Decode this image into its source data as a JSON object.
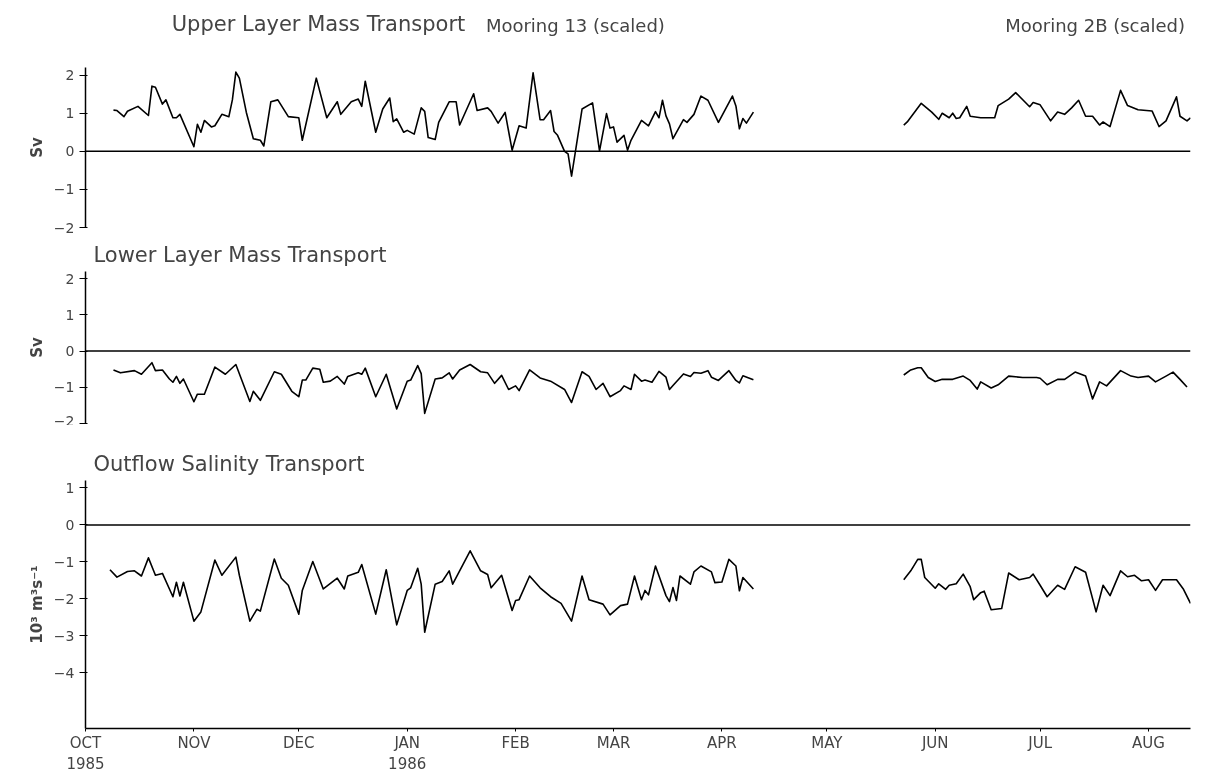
{
  "chart_data": [
    {
      "type": "line",
      "title": "Upper Layer Mass Transport",
      "annotations": [
        "Mooring 13 (scaled)",
        "Mooring 2B (scaled)"
      ],
      "ylabel": "Sv",
      "xlim": [
        "1985-10-01",
        "1986-08-13"
      ],
      "ylim": [
        -2,
        2.2
      ],
      "yticks": [
        -2,
        -1,
        0,
        1,
        2
      ],
      "grid": false,
      "tick_labels": "y",
      "ref_lines": [
        {
          "axis": "y",
          "value": 0,
          "color": "#000000"
        }
      ],
      "series": [
        {
          "color": "#000000",
          "x": [
            "1985-10-09",
            "1985-10-10",
            "1985-10-12",
            "1985-10-13",
            "1985-10-16",
            "1985-10-19",
            "1985-10-20",
            "1985-10-21",
            "1985-10-23",
            "1985-10-24",
            "1985-10-26",
            "1985-10-27",
            "1985-10-28",
            "1985-11-01",
            "1985-11-02",
            "1985-11-03",
            "1985-11-04",
            "1985-11-06",
            "1985-11-07",
            "1985-11-09",
            "1985-11-11",
            "1985-11-12",
            "1985-11-13",
            "1985-11-14",
            "1985-11-16",
            "1985-11-18",
            "1985-11-20",
            "1985-11-21",
            "1985-11-23",
            "1985-11-25",
            "1985-11-28",
            "1985-12-01",
            "1985-12-02",
            "1985-12-06",
            "1985-12-09",
            "1985-12-12",
            "1985-12-13",
            "1985-12-16",
            "1985-12-18",
            "1985-12-19",
            "1985-12-20",
            "1985-12-23",
            "1985-12-25",
            "1985-12-27",
            "1985-12-28",
            "1985-12-29",
            "1985-12-31",
            "1986-01-01",
            "1986-01-03",
            "1986-01-05",
            "1986-01-06",
            "1986-01-07",
            "1986-01-09",
            "1986-01-10",
            "1986-01-13",
            "1986-01-15",
            "1986-01-16",
            "1986-01-20",
            "1986-01-21",
            "1986-01-24",
            "1986-01-25",
            "1986-01-27",
            "1986-01-29",
            "1986-01-31",
            "1986-02-02",
            "1986-02-04",
            "1986-02-06",
            "1986-02-08",
            "1986-02-09",
            "1986-02-11",
            "1986-02-12",
            "1986-02-13",
            "1986-02-15",
            "1986-02-16",
            "1986-02-17",
            "1986-02-18",
            "1986-02-20",
            "1986-02-23",
            "1986-02-25",
            "1986-02-27",
            "1986-02-28",
            "1986-03-01",
            "1986-03-02",
            "1986-03-04",
            "1986-03-05",
            "1986-03-06",
            "1986-03-09",
            "1986-03-11",
            "1986-03-13",
            "1986-03-14",
            "1986-03-15",
            "1986-03-16",
            "1986-03-17",
            "1986-03-18",
            "1986-03-21",
            "1986-03-22",
            "1986-03-24",
            "1986-03-26",
            "1986-03-28",
            "1986-03-31",
            "1986-04-04",
            "1986-04-05",
            "1986-04-06",
            "1986-04-07",
            "1986-04-08",
            "1986-04-10"
          ],
          "values": [
            1.08,
            1.07,
            0.91,
            1.05,
            1.18,
            0.94,
            1.71,
            1.68,
            1.24,
            1.35,
            0.88,
            0.88,
            0.97,
            0.12,
            0.71,
            0.5,
            0.81,
            0.64,
            0.67,
            0.97,
            0.91,
            1.35,
            2.08,
            1.92,
            1.02,
            0.33,
            0.29,
            0.14,
            1.3,
            1.35,
            0.91,
            0.88,
            0.29,
            1.92,
            0.88,
            1.3,
            0.97,
            1.3,
            1.37,
            1.18,
            1.84,
            0.5,
            1.11,
            1.4,
            0.78,
            0.85,
            0.5,
            0.55,
            0.45,
            1.14,
            1.05,
            0.36,
            0.31,
            0.76,
            1.3,
            1.3,
            0.69,
            1.51,
            1.07,
            1.14,
            1.05,
            0.74,
            1.02,
            0.03,
            0.67,
            0.61,
            2.06,
            0.83,
            0.83,
            1.07,
            0.52,
            0.42,
            0.0,
            -0.07,
            -0.65,
            -0.07,
            1.11,
            1.27,
            0.01,
            0.99,
            0.61,
            0.64,
            0.24,
            0.42,
            0.03,
            0.29,
            0.81,
            0.67,
            1.04,
            0.88,
            1.34,
            0.93,
            0.72,
            0.33,
            0.83,
            0.76,
            0.97,
            1.45,
            1.34,
            0.76,
            1.45,
            1.19,
            0.59,
            0.86,
            0.74,
            1.03
          ]
        },
        {
          "color": "#000000",
          "x": [
            "1986-05-23",
            "1986-05-24",
            "1986-05-28",
            "1986-05-31",
            "1986-06-02",
            "1986-06-03",
            "1986-06-05",
            "1986-06-06",
            "1986-06-07",
            "1986-06-08",
            "1986-06-10",
            "1986-06-11",
            "1986-06-14",
            "1986-06-18",
            "1986-06-19",
            "1986-06-22",
            "1986-06-24",
            "1986-06-28",
            "1986-06-29",
            "1986-07-01",
            "1986-07-04",
            "1986-07-06",
            "1986-07-08",
            "1986-07-10",
            "1986-07-12",
            "1986-07-14",
            "1986-07-16",
            "1986-07-18",
            "1986-07-19",
            "1986-07-21",
            "1986-07-24",
            "1986-07-26",
            "1986-07-29",
            "1986-08-02",
            "1986-08-04",
            "1986-08-06",
            "1986-08-09",
            "1986-08-10",
            "1986-08-12",
            "1986-08-13"
          ],
          "values": [
            0.69,
            0.77,
            1.26,
            1.03,
            0.84,
            1.0,
            0.88,
            1.0,
            0.86,
            0.88,
            1.18,
            0.92,
            0.88,
            0.88,
            1.2,
            1.37,
            1.54,
            1.17,
            1.28,
            1.22,
            0.8,
            1.03,
            0.97,
            1.14,
            1.34,
            0.92,
            0.92,
            0.69,
            0.77,
            0.65,
            1.6,
            1.2,
            1.09,
            1.06,
            0.65,
            0.8,
            1.43,
            0.92,
            0.8,
            0.88
          ]
        }
      ]
    },
    {
      "type": "line",
      "title": "Lower Layer Mass Transport",
      "ylabel": "Sv",
      "xlim": [
        "1985-10-01",
        "1986-08-13"
      ],
      "ylim": [
        -2,
        2.2
      ],
      "yticks": [
        -2,
        -1,
        0,
        1,
        2
      ],
      "grid": false,
      "tick_labels": "y",
      "ref_lines": [
        {
          "axis": "y",
          "value": 0,
          "color": "#000000"
        }
      ],
      "series": [
        {
          "color": "#000000",
          "x": [
            "1985-10-09",
            "1985-10-11",
            "1985-10-15",
            "1985-10-17",
            "1985-10-20",
            "1985-10-21",
            "1985-10-23",
            "1985-10-25",
            "1985-10-26",
            "1985-10-27",
            "1985-10-28",
            "1985-10-29",
            "1985-11-01",
            "1985-11-02",
            "1985-11-04",
            "1985-11-07",
            "1985-11-10",
            "1985-11-13",
            "1985-11-17",
            "1985-11-18",
            "1985-11-20",
            "1985-11-24",
            "1985-11-26",
            "1985-11-29",
            "1985-12-01",
            "1985-12-02",
            "1985-12-03",
            "1985-12-05",
            "1985-12-07",
            "1985-12-08",
            "1985-12-10",
            "1985-12-12",
            "1985-12-14",
            "1985-12-15",
            "1985-12-18",
            "1985-12-19",
            "1985-12-20",
            "1985-12-23",
            "1985-12-26",
            "1985-12-29",
            "1986-01-01",
            "1986-01-02",
            "1986-01-04",
            "1986-01-05",
            "1986-01-06",
            "1986-01-09",
            "1986-01-11",
            "1986-01-13",
            "1986-01-14",
            "1986-01-16",
            "1986-01-19",
            "1986-01-22",
            "1986-01-24",
            "1986-01-26",
            "1986-01-28",
            "1986-01-30",
            "1986-02-01",
            "1986-02-02",
            "1986-02-05",
            "1986-02-08",
            "1986-02-11",
            "1986-02-15",
            "1986-02-17",
            "1986-02-20",
            "1986-02-22",
            "1986-02-24",
            "1986-02-26",
            "1986-02-28",
            "1986-03-03",
            "1986-03-04",
            "1986-03-06",
            "1986-03-07",
            "1986-03-09",
            "1986-03-10",
            "1986-03-12",
            "1986-03-14",
            "1986-03-16",
            "1986-03-17",
            "1986-03-18",
            "1986-03-21",
            "1986-03-23",
            "1986-03-24",
            "1986-03-26",
            "1986-03-28",
            "1986-03-29",
            "1986-03-31",
            "1986-04-03",
            "1986-04-05",
            "1986-04-06",
            "1986-04-07",
            "1986-04-10"
          ],
          "values": [
            -0.52,
            -0.6,
            -0.54,
            -0.64,
            -0.32,
            -0.54,
            -0.52,
            -0.77,
            -0.86,
            -0.7,
            -0.89,
            -0.77,
            -1.4,
            -1.19,
            -1.19,
            -0.44,
            -0.64,
            -0.37,
            -1.39,
            -1.11,
            -1.36,
            -0.57,
            -0.64,
            -1.11,
            -1.26,
            -0.8,
            -0.8,
            -0.47,
            -0.5,
            -0.86,
            -0.83,
            -0.7,
            -0.91,
            -0.7,
            -0.6,
            -0.64,
            -0.47,
            -1.26,
            -0.64,
            -1.6,
            -0.83,
            -0.8,
            -0.4,
            -0.62,
            -1.72,
            -0.77,
            -0.74,
            -0.6,
            -0.77,
            -0.52,
            -0.37,
            -0.57,
            -0.6,
            -0.89,
            -0.67,
            -1.06,
            -0.96,
            -1.09,
            -0.52,
            -0.74,
            -0.83,
            -1.06,
            -1.42,
            -0.57,
            -0.7,
            -1.06,
            -0.89,
            -1.26,
            -1.09,
            -0.96,
            -1.06,
            -0.64,
            -0.83,
            -0.8,
            -0.86,
            -0.56,
            -0.72,
            -1.06,
            -0.95,
            -0.63,
            -0.7,
            -0.59,
            -0.61,
            -0.54,
            -0.72,
            -0.81,
            -0.54,
            -0.81,
            -0.88,
            -0.68,
            -0.79
          ]
        },
        {
          "color": "#000000",
          "x": [
            "1986-05-23",
            "1986-05-25",
            "1986-05-27",
            "1986-05-28",
            "1986-05-30",
            "1986-06-01",
            "1986-06-03",
            "1986-06-06",
            "1986-06-09",
            "1986-06-11",
            "1986-06-13",
            "1986-06-14",
            "1986-06-17",
            "1986-06-19",
            "1986-06-22",
            "1986-06-26",
            "1986-06-30",
            "1986-07-01",
            "1986-07-03",
            "1986-07-06",
            "1986-07-08",
            "1986-07-11",
            "1986-07-14",
            "1986-07-16",
            "1986-07-18",
            "1986-07-20",
            "1986-07-24",
            "1986-07-27",
            "1986-07-29",
            "1986-08-01",
            "1986-08-03",
            "1986-08-06",
            "1986-08-08",
            "1986-08-10",
            "1986-08-12"
          ],
          "values": [
            -0.66,
            -0.52,
            -0.46,
            -0.46,
            -0.73,
            -0.84,
            -0.78,
            -0.78,
            -0.69,
            -0.81,
            -1.05,
            -0.85,
            -1.02,
            -0.93,
            -0.69,
            -0.73,
            -0.73,
            -0.75,
            -0.93,
            -0.78,
            -0.78,
            -0.58,
            -0.69,
            -1.32,
            -0.85,
            -0.96,
            -0.54,
            -0.69,
            -0.73,
            -0.69,
            -0.85,
            -0.69,
            -0.58,
            -0.78,
            -0.99
          ]
        }
      ]
    },
    {
      "type": "line",
      "title": "Outflow Salinity Transport",
      "ylabel": "10³ m³s⁻¹",
      "xlim": [
        "1985-10-01",
        "1986-08-13"
      ],
      "ylim": [
        -5.5,
        1.2
      ],
      "yticks": [
        -4,
        -3,
        -2,
        -1,
        0,
        1
      ],
      "grid": false,
      "ref_lines": [
        {
          "axis": "y",
          "value": 0,
          "color": "#000000"
        }
      ],
      "xticks": [
        {
          "value": "1985-10-01",
          "label": "OCT\n1985"
        },
        {
          "value": "1985-11-01",
          "label": "NOV"
        },
        {
          "value": "1985-12-01",
          "label": "DEC"
        },
        {
          "value": "1986-01-01",
          "label": "JAN\n1986"
        },
        {
          "value": "1986-02-01",
          "label": "FEB"
        },
        {
          "value": "1986-03-01",
          "label": "MAR"
        },
        {
          "value": "1986-04-01",
          "label": "APR"
        },
        {
          "value": "1986-05-01",
          "label": "MAY"
        },
        {
          "value": "1986-06-01",
          "label": "JUN"
        },
        {
          "value": "1986-07-01",
          "label": "JUL"
        },
        {
          "value": "1986-08-01",
          "label": "AUG"
        }
      ],
      "series": [
        {
          "color": "#000000",
          "x": [
            "1985-10-08",
            "1985-10-10",
            "1985-10-13",
            "1985-10-15",
            "1985-10-17",
            "1985-10-19",
            "1985-10-21",
            "1985-10-23",
            "1985-10-26",
            "1985-10-27",
            "1985-10-28",
            "1985-10-29",
            "1985-11-01",
            "1985-11-03",
            "1985-11-07",
            "1985-11-09",
            "1985-11-13",
            "1985-11-14",
            "1985-11-17",
            "1985-11-19",
            "1985-11-20",
            "1985-11-24",
            "1985-11-26",
            "1985-11-28",
            "1985-12-01",
            "1985-12-02",
            "1985-12-05",
            "1985-12-08",
            "1985-12-12",
            "1985-12-14",
            "1985-12-15",
            "1985-12-18",
            "1985-12-19",
            "1985-12-23",
            "1985-12-26",
            "1985-12-29",
            "1986-01-01",
            "1986-01-02",
            "1986-01-04",
            "1986-01-05",
            "1986-01-06",
            "1986-01-09",
            "1986-01-11",
            "1986-01-13",
            "1986-01-14",
            "1986-01-19",
            "1986-01-22",
            "1986-01-24",
            "1986-01-25",
            "1986-01-28",
            "1986-01-31",
            "1986-02-01",
            "1986-02-02",
            "1986-02-05",
            "1986-02-08",
            "1986-02-11",
            "1986-02-14",
            "1986-02-17",
            "1986-02-20",
            "1986-02-22",
            "1986-02-26",
            "1986-02-28",
            "1986-03-03",
            "1986-03-05",
            "1986-03-07",
            "1986-03-09",
            "1986-03-10",
            "1986-03-11",
            "1986-03-13",
            "1986-03-16",
            "1986-03-17",
            "1986-03-18",
            "1986-03-19",
            "1986-03-20",
            "1986-03-23",
            "1986-03-24",
            "1986-03-26",
            "1986-03-29",
            "1986-03-30",
            "1986-04-01",
            "1986-04-03",
            "1986-04-05",
            "1986-04-06",
            "1986-04-07",
            "1986-04-10"
          ],
          "values": [
            -1.21,
            -1.41,
            -1.26,
            -1.24,
            -1.38,
            -0.89,
            -1.36,
            -1.31,
            -1.94,
            -1.55,
            -1.92,
            -1.55,
            -2.6,
            -2.35,
            -0.95,
            -1.36,
            -0.87,
            -1.36,
            -2.6,
            -2.28,
            -2.33,
            -0.92,
            -1.44,
            -1.63,
            -2.41,
            -1.77,
            -0.99,
            -1.73,
            -1.44,
            -1.73,
            -1.38,
            -1.28,
            -1.07,
            -2.41,
            -1.21,
            -2.7,
            -1.77,
            -1.7,
            -1.17,
            -1.6,
            -2.9,
            -1.6,
            -1.53,
            -1.24,
            -1.6,
            -0.7,
            -1.24,
            -1.34,
            -1.7,
            -1.36,
            -2.31,
            -2.04,
            -2.02,
            -1.38,
            -1.7,
            -1.94,
            -2.12,
            -2.6,
            -1.38,
            -2.02,
            -2.14,
            -2.43,
            -2.18,
            -2.14,
            -1.38,
            -2.02,
            -1.77,
            -1.89,
            -1.11,
            -1.91,
            -2.07,
            -1.69,
            -2.04,
            -1.38,
            -1.6,
            -1.27,
            -1.11,
            -1.27,
            -1.56,
            -1.54,
            -0.93,
            -1.11,
            -1.78,
            -1.42,
            -1.73
          ]
        },
        {
          "color": "#000000",
          "x": [
            "1986-05-23",
            "1986-05-25",
            "1986-05-27",
            "1986-05-28",
            "1986-05-29",
            "1986-06-01",
            "1986-06-02",
            "1986-06-04",
            "1986-06-05",
            "1986-06-07",
            "1986-06-09",
            "1986-06-11",
            "1986-06-12",
            "1986-06-14",
            "1986-06-15",
            "1986-06-17",
            "1986-06-20",
            "1986-06-22",
            "1986-06-25",
            "1986-06-28",
            "1986-06-29",
            "1986-07-01",
            "1986-07-03",
            "1986-07-06",
            "1986-07-08",
            "1986-07-11",
            "1986-07-14",
            "1986-07-17",
            "1986-07-19",
            "1986-07-21",
            "1986-07-24",
            "1986-07-26",
            "1986-07-28",
            "1986-07-30",
            "1986-08-01",
            "1986-08-03",
            "1986-08-05",
            "1986-08-09",
            "1986-08-11",
            "1986-08-13"
          ],
          "values": [
            -1.48,
            -1.24,
            -0.93,
            -0.93,
            -1.42,
            -1.71,
            -1.59,
            -1.74,
            -1.63,
            -1.59,
            -1.33,
            -1.67,
            -2.02,
            -1.83,
            -1.79,
            -2.29,
            -2.26,
            -1.3,
            -1.48,
            -1.42,
            -1.33,
            -1.63,
            -1.94,
            -1.63,
            -1.74,
            -1.13,
            -1.28,
            -2.35,
            -1.63,
            -1.91,
            -1.24,
            -1.4,
            -1.36,
            -1.51,
            -1.48,
            -1.77,
            -1.48,
            -1.48,
            -1.74,
            -2.12
          ]
        }
      ]
    }
  ]
}
